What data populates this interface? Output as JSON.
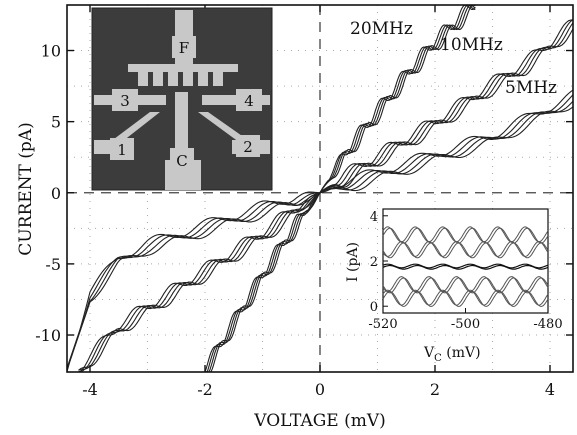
{
  "chart_data": {
    "type": "line",
    "xlabel": "VOLTAGE (mV)",
    "ylabel": "CURRENT (pA)",
    "xlim": [
      -4.4,
      4.4
    ],
    "ylim": [
      -12.6,
      13.2
    ],
    "xticks": [
      -4,
      -2,
      0,
      2,
      4
    ],
    "xtick_labels": [
      "-4",
      "-2",
      "0",
      "2",
      "4"
    ],
    "yticks": [
      -10,
      -5,
      0,
      5,
      10
    ],
    "ytick_labels": [
      "-10",
      "-5",
      "0",
      "5",
      "10"
    ],
    "grid": "dotted",
    "series": [
      {
        "name": "20MHz",
        "x": [
          -2.0,
          -1.5,
          -1.0,
          -0.5,
          0.0,
          0.5,
          1.0,
          1.5,
          2.0,
          2.7
        ],
        "y": [
          -12.6,
          -9.2,
          -5.9,
          -2.8,
          0.0,
          3.0,
          5.6,
          8.2,
          10.5,
          13.2
        ]
      },
      {
        "name": "10MHz",
        "x": [
          -4.2,
          -3.5,
          -3.0,
          -2.0,
          -1.0,
          -0.5,
          0.0,
          1.0,
          2.0,
          3.0,
          3.6,
          4.4
        ],
        "y": [
          -12.6,
          -9.5,
          -8.2,
          -5.6,
          -3.0,
          -1.5,
          0.0,
          2.4,
          4.8,
          7.5,
          9.0,
          11.7
        ]
      },
      {
        "name": "5MHz",
        "x": [
          -4.4,
          -4.0,
          -3.5,
          -3.0,
          -2.0,
          -1.0,
          0.0,
          1.0,
          2.0,
          3.0,
          4.0,
          4.4
        ],
        "y": [
          -12.6,
          -7.2,
          -4.8,
          -3.8,
          -2.5,
          -1.2,
          0.0,
          1.2,
          2.5,
          3.8,
          5.8,
          6.6
        ]
      }
    ],
    "inset": {
      "xlabel": "V",
      "xlabel_sub": "C",
      "xlabel_unit": " (mV)",
      "ylabel": "I (pA)",
      "xticks": [
        -520,
        -500,
        -480
      ],
      "xtick_labels": [
        "-520",
        "-500",
        "-480"
      ],
      "yticks": [
        0,
        2,
        4
      ],
      "ytick_labels": [
        "0",
        "2",
        "4"
      ],
      "xlim": [
        -520,
        -480
      ],
      "ylim": [
        -0.3,
        4.3
      ]
    },
    "micrograph_labels": [
      "F",
      "3",
      "4",
      "1",
      "2",
      "C"
    ]
  }
}
